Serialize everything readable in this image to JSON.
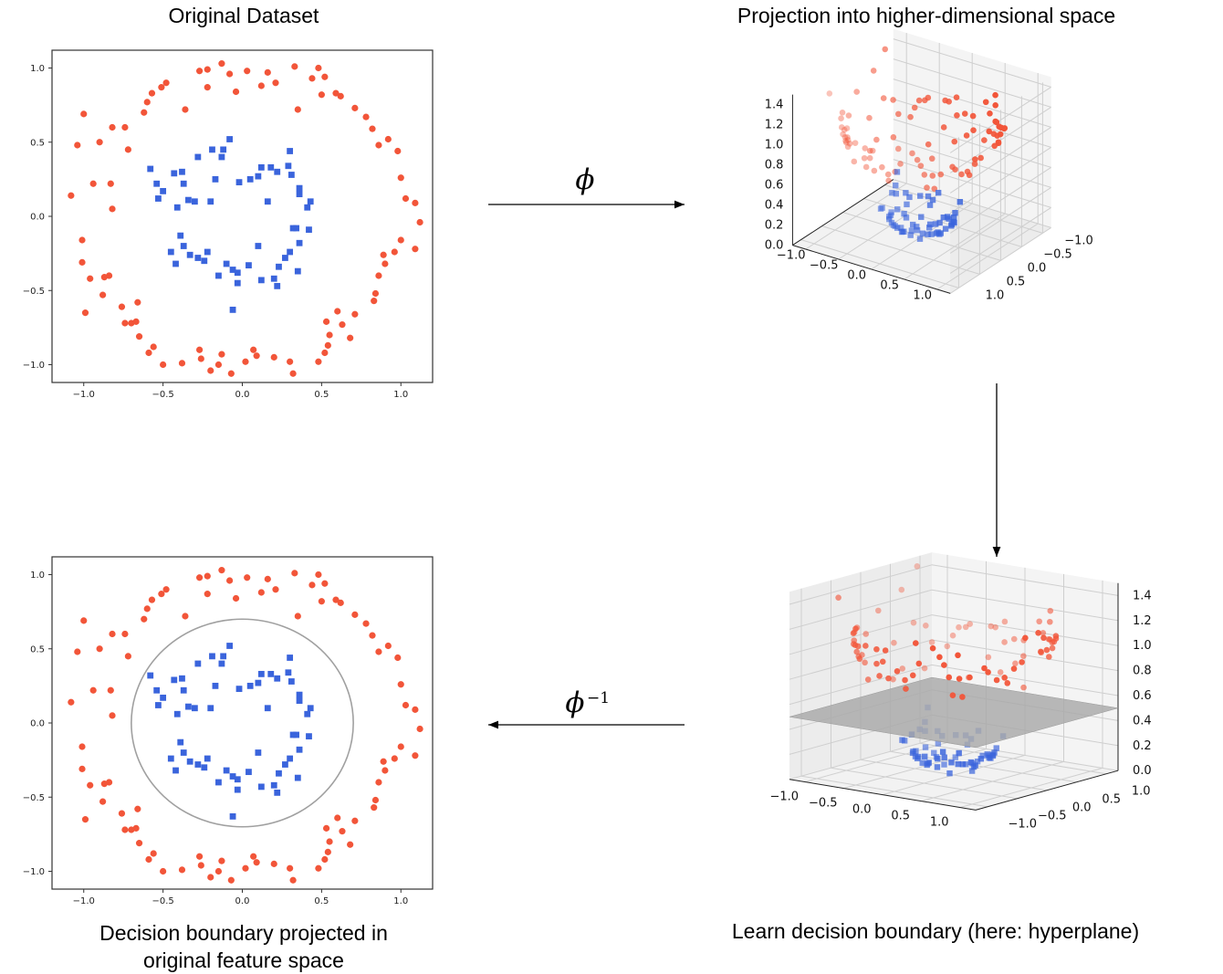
{
  "captions": {
    "original": "Original Dataset",
    "projection": "Projection into higher-dimensional space",
    "learn": "Learn decision boundary (here: hyperplane)",
    "boundary_line1": "Decision boundary projected in",
    "boundary_line2": "original feature space"
  },
  "arrows": {
    "forward_symbol": "ϕ",
    "inverse_symbol": "ϕ",
    "inverse_superscript": "−1"
  },
  "colors": {
    "outer_class": "#f25539",
    "inner_class": "#3a64dc",
    "boundary_circle": "#a0a0a0",
    "hyperplane": "#a8a8a8"
  },
  "chart_data": [
    {
      "id": "original-scatter",
      "type": "scatter",
      "title": "Original Dataset",
      "xlim": [
        -1.2,
        1.2
      ],
      "ylim": [
        -1.12,
        1.12
      ],
      "xticks": [
        "−1.0",
        "−0.5",
        "0.0",
        "0.5",
        "1.0"
      ],
      "yticks": [
        "1.0",
        "0.5",
        "0.0",
        "−0.5",
        "−1.0"
      ],
      "series": [
        {
          "name": "outer circle",
          "marker": "circle",
          "points": "outer"
        },
        {
          "name": "inner circle",
          "marker": "square",
          "points": "inner"
        }
      ]
    },
    {
      "id": "projection-3d",
      "type": "scatter",
      "title": "Projection into higher-dimensional space",
      "xticks": [
        "−1.0",
        "−0.5",
        "0.0",
        "0.5",
        "1.0"
      ],
      "yticks": [
        "−1.0",
        "−0.5",
        "0.0",
        "0.5",
        "1.0"
      ],
      "zticks": [
        "1.4",
        "1.2",
        "1.0",
        "0.8",
        "0.6",
        "0.4",
        "0.2",
        "0.0"
      ],
      "zlim": [
        0,
        1.4
      ]
    },
    {
      "id": "hyperplane-3d",
      "type": "scatter",
      "title": "Learn decision boundary (here: hyperplane)",
      "xticks": [
        "−1.0",
        "−0.5",
        "0.0",
        "0.5",
        "1.0"
      ],
      "yticks": [
        "−1.0",
        "−0.5",
        "0.0",
        "0.5",
        "1.0"
      ],
      "zticks": [
        "1.4",
        "1.2",
        "1.0",
        "0.8",
        "0.6",
        "0.4",
        "0.2",
        "0.0"
      ],
      "zlim": [
        0,
        1.4
      ],
      "hyperplane_z": 0.5
    },
    {
      "id": "boundary-scatter",
      "type": "scatter",
      "title": "Decision boundary projected in original feature space",
      "xlim": [
        -1.2,
        1.2
      ],
      "ylim": [
        -1.12,
        1.12
      ],
      "xticks": [
        "−1.0",
        "−0.5",
        "0.0",
        "0.5",
        "1.0"
      ],
      "yticks": [
        "1.0",
        "0.5",
        "0.0",
        "−0.5",
        "−1.0"
      ],
      "boundary_radius": 0.7
    }
  ],
  "points": {
    "outer": [
      [
        -1.08,
        0.14
      ],
      [
        -1.04,
        0.48
      ],
      [
        -1.0,
        0.69
      ],
      [
        -0.94,
        0.22
      ],
      [
        -0.9,
        0.5
      ],
      [
        -0.82,
        0.6
      ],
      [
        -0.83,
        0.22
      ],
      [
        -0.82,
        0.05
      ],
      [
        -1.01,
        -0.16
      ],
      [
        -1.01,
        -0.31
      ],
      [
        -0.96,
        -0.42
      ],
      [
        -0.84,
        -0.4
      ],
      [
        -0.87,
        -0.41
      ],
      [
        -0.88,
        -0.53
      ],
      [
        -0.99,
        -0.65
      ],
      [
        -0.76,
        -0.61
      ],
      [
        -0.74,
        -0.72
      ],
      [
        -0.7,
        -0.72
      ],
      [
        -0.67,
        -0.71
      ],
      [
        -0.65,
        -0.81
      ],
      [
        -0.66,
        -0.58
      ],
      [
        -0.59,
        -0.92
      ],
      [
        -0.56,
        -0.88
      ],
      [
        -0.5,
        -1.0
      ],
      [
        -0.38,
        -0.99
      ],
      [
        -0.26,
        -0.96
      ],
      [
        -0.27,
        -0.9
      ],
      [
        -0.2,
        -1.04
      ],
      [
        -0.13,
        -0.93
      ],
      [
        -0.15,
        -1.0
      ],
      [
        -0.07,
        -1.06
      ],
      [
        0.02,
        -0.98
      ],
      [
        0.07,
        -0.9
      ],
      [
        0.09,
        -0.94
      ],
      [
        0.2,
        -0.95
      ],
      [
        0.3,
        -0.98
      ],
      [
        0.32,
        -1.06
      ],
      [
        0.48,
        -0.98
      ],
      [
        0.52,
        -0.92
      ],
      [
        0.54,
        -0.87
      ],
      [
        0.55,
        -0.8
      ],
      [
        0.53,
        -0.71
      ],
      [
        0.6,
        -0.64
      ],
      [
        0.63,
        -0.73
      ],
      [
        0.71,
        -0.66
      ],
      [
        0.68,
        -0.82
      ],
      [
        0.83,
        -0.57
      ],
      [
        0.84,
        -0.52
      ],
      [
        0.86,
        -0.4
      ],
      [
        0.9,
        -0.32
      ],
      [
        0.89,
        -0.26
      ],
      [
        0.96,
        -0.24
      ],
      [
        1.0,
        -0.16
      ],
      [
        1.09,
        -0.22
      ],
      [
        1.12,
        -0.04
      ],
      [
        1.09,
        0.09
      ],
      [
        1.03,
        0.12
      ],
      [
        1.0,
        0.26
      ],
      [
        0.98,
        0.44
      ],
      [
        0.92,
        0.52
      ],
      [
        0.86,
        0.48
      ],
      [
        0.82,
        0.59
      ],
      [
        0.78,
        0.67
      ],
      [
        0.71,
        0.73
      ],
      [
        0.62,
        0.81
      ],
      [
        0.59,
        0.83
      ],
      [
        0.52,
        0.94
      ],
      [
        0.48,
        1.0
      ],
      [
        0.33,
        1.01
      ],
      [
        0.21,
        0.9
      ],
      [
        0.16,
        0.97
      ],
      [
        0.03,
        0.98
      ],
      [
        -0.04,
        0.84
      ],
      [
        -0.08,
        0.96
      ],
      [
        -0.13,
        1.03
      ],
      [
        -0.22,
        0.87
      ],
      [
        -0.27,
        0.98
      ],
      [
        -0.36,
        0.72
      ],
      [
        -0.48,
        0.9
      ],
      [
        -0.51,
        0.87
      ],
      [
        -0.57,
        0.83
      ],
      [
        -0.62,
        0.7
      ],
      [
        -0.6,
        0.77
      ],
      [
        -0.74,
        0.6
      ],
      [
        -0.72,
        0.45
      ],
      [
        0.35,
        0.72
      ],
      [
        0.44,
        0.93
      ],
      [
        0.5,
        0.82
      ],
      [
        0.12,
        0.88
      ],
      [
        -0.22,
        0.99
      ]
    ],
    "inner": [
      [
        -0.58,
        0.32
      ],
      [
        -0.54,
        0.22
      ],
      [
        -0.5,
        0.17
      ],
      [
        -0.53,
        0.12
      ],
      [
        -0.43,
        0.29
      ],
      [
        -0.38,
        0.3
      ],
      [
        -0.37,
        0.22
      ],
      [
        -0.34,
        0.11
      ],
      [
        -0.41,
        0.06
      ],
      [
        -0.39,
        -0.13
      ],
      [
        -0.45,
        -0.24
      ],
      [
        -0.42,
        -0.32
      ],
      [
        -0.37,
        -0.2
      ],
      [
        -0.33,
        -0.26
      ],
      [
        -0.28,
        -0.28
      ],
      [
        -0.24,
        -0.3
      ],
      [
        -0.22,
        -0.24
      ],
      [
        -0.15,
        -0.4
      ],
      [
        -0.1,
        -0.32
      ],
      [
        -0.06,
        -0.36
      ],
      [
        -0.03,
        -0.45
      ],
      [
        -0.06,
        -0.63
      ],
      [
        0.04,
        -0.33
      ],
      [
        0.1,
        -0.2
      ],
      [
        0.12,
        -0.43
      ],
      [
        0.2,
        -0.42
      ],
      [
        0.22,
        -0.47
      ],
      [
        0.23,
        -0.34
      ],
      [
        0.27,
        -0.28
      ],
      [
        0.3,
        -0.24
      ],
      [
        0.35,
        -0.37
      ],
      [
        0.36,
        -0.18
      ],
      [
        0.34,
        -0.08
      ],
      [
        0.42,
        -0.09
      ],
      [
        0.41,
        0.06
      ],
      [
        0.43,
        0.1
      ],
      [
        0.36,
        0.19
      ],
      [
        0.29,
        0.34
      ],
      [
        0.22,
        0.3
      ],
      [
        0.18,
        0.33
      ],
      [
        0.12,
        0.33
      ],
      [
        0.1,
        0.27
      ],
      [
        0.05,
        0.25
      ],
      [
        -0.02,
        0.23
      ],
      [
        -0.08,
        0.52
      ],
      [
        -0.12,
        0.45
      ],
      [
        -0.17,
        0.25
      ],
      [
        -0.19,
        0.45
      ],
      [
        -0.2,
        0.1
      ],
      [
        -0.28,
        0.4
      ],
      [
        -0.3,
        0.1
      ],
      [
        -0.13,
        0.4
      ],
      [
        0.3,
        0.44
      ],
      [
        0.36,
        0.15
      ],
      [
        0.31,
        0.28
      ],
      [
        -0.03,
        -0.38
      ],
      [
        0.16,
        0.1
      ],
      [
        0.32,
        -0.08
      ]
    ]
  }
}
